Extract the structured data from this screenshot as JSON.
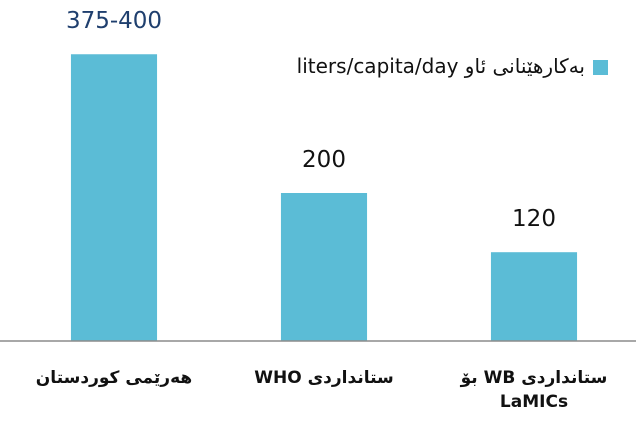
{
  "chart_data": {
    "type": "bar",
    "categories": [
      "هەرێمی کوردستان",
      "ستانداردی WHO",
      "ستانداردی WB بۆ LaMICs"
    ],
    "series": [
      {
        "name": "بەکارهێنانی ئاو liters/capita/day",
        "color": "#5bbcd6",
        "values": [
          387.5,
          200,
          120
        ],
        "value_labels": [
          "375-400",
          "200",
          "120"
        ]
      }
    ],
    "value_label_colors": [
      "#1f3f6e",
      "#111111",
      "#111111"
    ],
    "ylim": [
      0,
      400
    ],
    "grid": false,
    "legend": "top-right"
  }
}
